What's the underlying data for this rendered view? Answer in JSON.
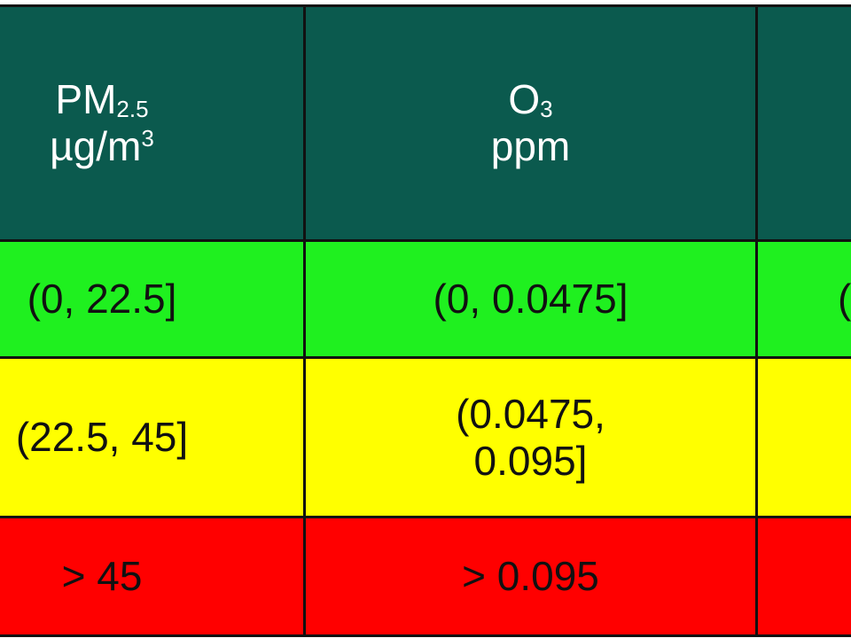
{
  "table": {
    "header": [
      {
        "name": "PM",
        "sub": "2.5",
        "unit": "µg/m",
        "sup": "3"
      },
      {
        "name": "O",
        "sub": "3",
        "unit": "ppm"
      }
    ],
    "rows": [
      [
        [
          "(0, 22.5]"
        ],
        [
          "(0, 0.0475]"
        ],
        [
          "("
        ]
      ],
      [
        [
          "(22.5, 45]"
        ],
        [
          "(0.0475,",
          "0.095]"
        ],
        []
      ],
      [
        [
          "> 45"
        ],
        [
          "> 0.095"
        ],
        []
      ]
    ]
  }
}
